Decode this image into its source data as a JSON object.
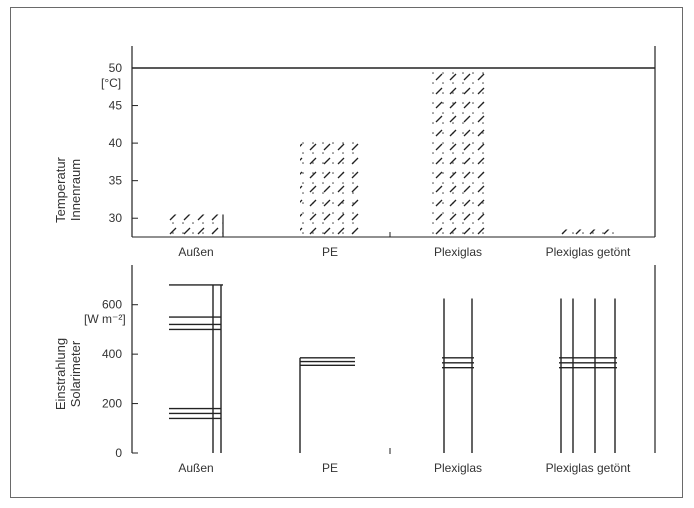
{
  "chart_data": [
    {
      "type": "bar",
      "title": "",
      "ylabel": [
        "Temperatur",
        "Innenraum"
      ],
      "unit": "[°C]",
      "categories": [
        "Außen",
        "PE",
        "Plexiglas",
        "Plexiglas getönt"
      ],
      "values": [
        30.5,
        40.2,
        50.0,
        28.5
      ],
      "ylim": [
        27.5,
        52.5
      ],
      "yticks": [
        30,
        35,
        40,
        45,
        50
      ],
      "reference_line": 50,
      "grid": false
    },
    {
      "type": "bar",
      "title": "",
      "ylabel": [
        "Einstrahlung",
        "Solarimeter"
      ],
      "unit": "[W m⁻²]",
      "categories": [
        "Außen",
        "PE",
        "Plexiglas",
        "Plexiglas getönt"
      ],
      "values": [
        680,
        385,
        625,
        625
      ],
      "ylim": [
        0,
        700
      ],
      "yticks": [
        0,
        200,
        400,
        600
      ],
      "grid": false
    }
  ]
}
